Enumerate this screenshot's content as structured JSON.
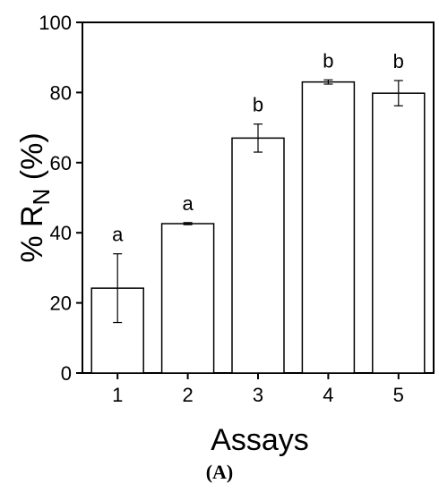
{
  "chart_data": {
    "type": "bar",
    "categories": [
      "1",
      "2",
      "3",
      "4",
      "5"
    ],
    "values": [
      24.2,
      42.6,
      67.0,
      83.0,
      79.8
    ],
    "error_low": [
      14.4,
      42.3,
      63.0,
      82.4,
      76.2
    ],
    "error_high": [
      34.0,
      42.9,
      71.0,
      83.6,
      83.4
    ],
    "annotations": [
      "a",
      "a",
      "b",
      "b",
      "b"
    ],
    "xlabel": "Assays",
    "ylabel_prefix": "% R",
    "ylabel_sub": "N",
    "ylabel_suffix": " (%)",
    "ylim": [
      0,
      100
    ],
    "yticks": [
      "0",
      "20",
      "40",
      "60",
      "80",
      "100"
    ],
    "grid": false,
    "bar_fill": "#ffffff",
    "bar_stroke": "#000000"
  },
  "panel_label": "(A)"
}
